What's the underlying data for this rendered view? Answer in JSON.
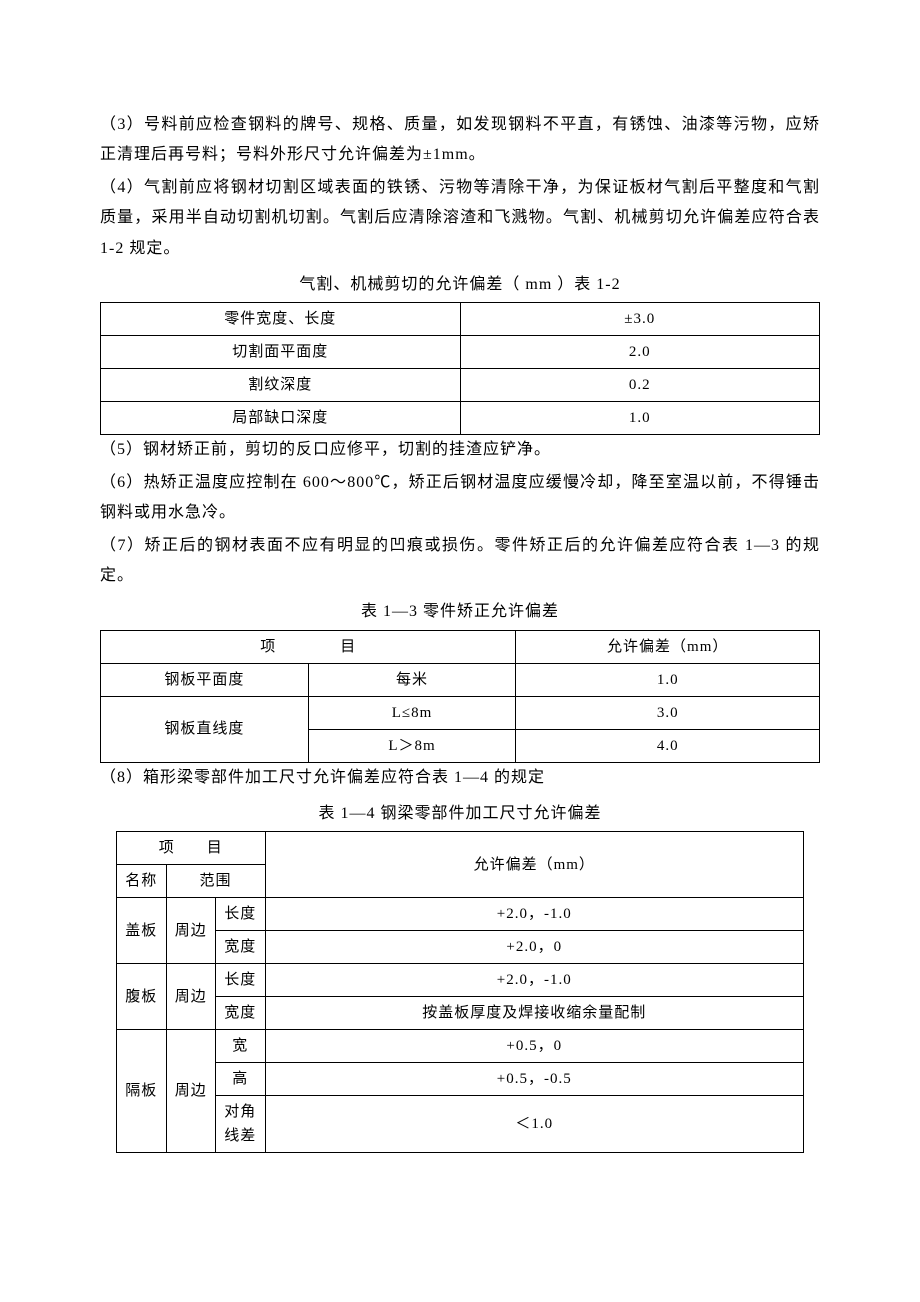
{
  "paragraphs": {
    "p3": "（3）号料前应检查钢料的牌号、规格、质量，如发现钢料不平直，有锈蚀、油漆等污物，应矫正清理后再号料；号料外形尺寸允许偏差为±1mm。",
    "p4": "（4）气割前应将钢材切割区域表面的铁锈、污物等清除干净，为保证板材气割后平整度和气割质量，采用半自动切割机切割。气割后应清除溶渣和飞溅物。气割、机械剪切允许偏差应符合表 1-2 规定。",
    "p5": "（5）钢材矫正前，剪切的反口应修平，切割的挂渣应铲净。",
    "p6": "（6）热矫正温度应控制在 600～800℃，矫正后钢材温度应缓慢冷却，降至室温以前，不得锤击钢料或用水急冷。",
    "p7": "（7）矫正后的钢材表面不应有明显的凹痕或损伤。零件矫正后的允许偏差应符合表 1—3 的规定。",
    "p8": "（8）箱形梁零部件加工尺寸允许偏差应符合表 1—4 的规定"
  },
  "table12": {
    "caption": "气割、机械剪切的允许偏差（ mm ）表 1-2",
    "rows": [
      {
        "label": "零件宽度、长度",
        "value": "±3.0"
      },
      {
        "label": "切割面平面度",
        "value": "2.0"
      },
      {
        "label": "割纹深度",
        "value": "0.2"
      },
      {
        "label": "局部缺口深度",
        "value": "1.0"
      }
    ]
  },
  "table13": {
    "caption": "表 1—3  零件矫正允许偏差",
    "header_item": "项　　　　目",
    "header_tol": "允许偏差（mm）",
    "rows": {
      "r1": {
        "item": "钢板平面度",
        "cond": "每米",
        "val": "1.0"
      },
      "r2": {
        "item": "钢板直线度",
        "cond": "L≤8m",
        "val": "3.0"
      },
      "r3": {
        "cond": "L＞8m",
        "val": "4.0"
      }
    }
  },
  "table14": {
    "caption": "表 1—4 钢梁零部件加工尺寸允许偏差",
    "header_item": "项　　目",
    "header_tol": "允许偏差（mm）",
    "header_name": "名称",
    "header_range": "范围",
    "rows": {
      "g_name": "盖板",
      "g_range": "周边",
      "g1_dim": "长度",
      "g1_val": "+2.0，-1.0",
      "g2_dim": "宽度",
      "g2_val": "+2.0，0",
      "f_name": "腹板",
      "f_range": "周边",
      "f1_dim": "长度",
      "f1_val": "+2.0，-1.0",
      "f2_dim": "宽度",
      "f2_val": "按盖板厚度及焊接收缩余量配制",
      "h_name": "隔板",
      "h_range": "周边",
      "h1_dim": "宽",
      "h1_val": "+0.5，0",
      "h2_dim": "高",
      "h2_val": "+0.5，-0.5",
      "h3_dim": "对角线差",
      "h3_val": "＜1.0"
    }
  }
}
